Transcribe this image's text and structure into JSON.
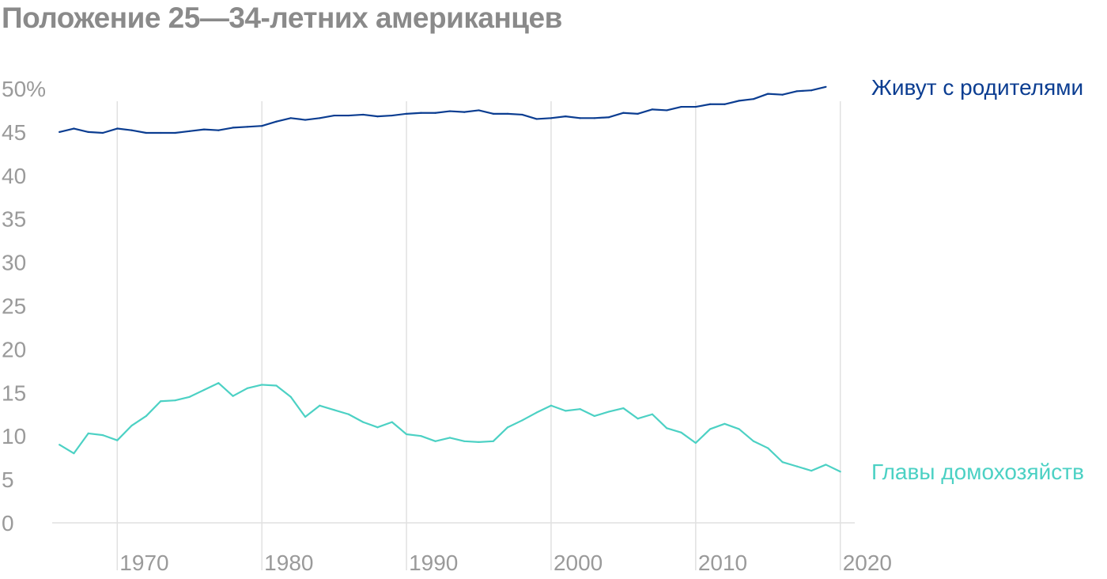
{
  "title": "Положение 25—34-летних американцев",
  "colors": {
    "living_with_parents": "#0b3d91",
    "heads_of_household": "#4cd1c4",
    "grid": "#e1e1e1",
    "axis_text": "#9a9a9a",
    "title": "#8a8a8a"
  },
  "chart_data": {
    "type": "line",
    "title": "Положение 25—34-летних американцев",
    "xlabel": "",
    "ylabel": "",
    "xlim": [
      1965.5,
      2021
    ],
    "ylim": [
      0,
      50
    ],
    "x_ticks": [
      1970,
      1980,
      1990,
      2000,
      2010,
      2020
    ],
    "y_ticks": [
      {
        "value": 0,
        "label": "0"
      },
      {
        "value": 5,
        "label": "5"
      },
      {
        "value": 10,
        "label": "10"
      },
      {
        "value": 15,
        "label": "15"
      },
      {
        "value": 20,
        "label": "20"
      },
      {
        "value": 25,
        "label": "25"
      },
      {
        "value": 30,
        "label": "30"
      },
      {
        "value": 35,
        "label": "35"
      },
      {
        "value": 40,
        "label": "40"
      },
      {
        "value": 45,
        "label": "45"
      },
      {
        "value": 50,
        "label": "50%"
      }
    ],
    "grid": "vertical",
    "series": [
      {
        "name": "Живут с родителями",
        "color": "#0b3d91",
        "points": [
          [
            1966,
            45.0
          ],
          [
            1967,
            45.4
          ],
          [
            1968,
            45.0
          ],
          [
            1969,
            44.9
          ],
          [
            1970,
            45.4
          ],
          [
            1971,
            45.2
          ],
          [
            1972,
            44.9
          ],
          [
            1973,
            44.9
          ],
          [
            1974,
            44.9
          ],
          [
            1975,
            45.1
          ],
          [
            1976,
            45.3
          ],
          [
            1977,
            45.2
          ],
          [
            1978,
            45.5
          ],
          [
            1979,
            45.6
          ],
          [
            1980,
            45.7
          ],
          [
            1981,
            46.2
          ],
          [
            1982,
            46.6
          ],
          [
            1983,
            46.4
          ],
          [
            1984,
            46.6
          ],
          [
            1985,
            46.9
          ],
          [
            1986,
            46.9
          ],
          [
            1987,
            47.0
          ],
          [
            1988,
            46.8
          ],
          [
            1989,
            46.9
          ],
          [
            1990,
            47.1
          ],
          [
            1991,
            47.2
          ],
          [
            1992,
            47.2
          ],
          [
            1993,
            47.4
          ],
          [
            1994,
            47.3
          ],
          [
            1995,
            47.5
          ],
          [
            1996,
            47.1
          ],
          [
            1997,
            47.1
          ],
          [
            1998,
            47.0
          ],
          [
            1999,
            46.5
          ],
          [
            2000,
            46.6
          ],
          [
            2001,
            46.8
          ],
          [
            2002,
            46.6
          ],
          [
            2003,
            46.6
          ],
          [
            2004,
            46.7
          ],
          [
            2005,
            47.2
          ],
          [
            2006,
            47.1
          ],
          [
            2007,
            47.6
          ],
          [
            2008,
            47.5
          ],
          [
            2009,
            47.9
          ],
          [
            2010,
            47.9
          ],
          [
            2011,
            48.2
          ],
          [
            2012,
            48.2
          ],
          [
            2013,
            48.6
          ],
          [
            2014,
            48.8
          ],
          [
            2015,
            49.4
          ],
          [
            2016,
            49.3
          ],
          [
            2017,
            49.7
          ],
          [
            2018,
            49.8
          ],
          [
            2019,
            50.2
          ]
        ]
      },
      {
        "name": "Главы домохозяйств",
        "color": "#4cd1c4",
        "points": [
          [
            1966,
            9.0
          ],
          [
            1967,
            8.0
          ],
          [
            1968,
            10.3
          ],
          [
            1969,
            10.1
          ],
          [
            1970,
            9.5
          ],
          [
            1971,
            11.2
          ],
          [
            1972,
            12.3
          ],
          [
            1973,
            14.0
          ],
          [
            1974,
            14.1
          ],
          [
            1975,
            14.5
          ],
          [
            1976,
            15.3
          ],
          [
            1977,
            16.1
          ],
          [
            1978,
            14.6
          ],
          [
            1979,
            15.5
          ],
          [
            1980,
            15.9
          ],
          [
            1981,
            15.8
          ],
          [
            1982,
            14.5
          ],
          [
            1983,
            12.2
          ],
          [
            1984,
            13.5
          ],
          [
            1985,
            13.0
          ],
          [
            1986,
            12.5
          ],
          [
            1987,
            11.6
          ],
          [
            1988,
            11.0
          ],
          [
            1989,
            11.6
          ],
          [
            1990,
            10.2
          ],
          [
            1991,
            10.0
          ],
          [
            1992,
            9.4
          ],
          [
            1993,
            9.8
          ],
          [
            1994,
            9.4
          ],
          [
            1995,
            9.3
          ],
          [
            1996,
            9.4
          ],
          [
            1997,
            11.0
          ],
          [
            1998,
            11.8
          ],
          [
            1999,
            12.7
          ],
          [
            2000,
            13.5
          ],
          [
            2001,
            12.9
          ],
          [
            2002,
            13.1
          ],
          [
            2003,
            12.3
          ],
          [
            2004,
            12.8
          ],
          [
            2005,
            13.2
          ],
          [
            2006,
            12.0
          ],
          [
            2007,
            12.5
          ],
          [
            2008,
            10.9
          ],
          [
            2009,
            10.4
          ],
          [
            2010,
            9.2
          ],
          [
            2011,
            10.8
          ],
          [
            2012,
            11.4
          ],
          [
            2013,
            10.8
          ],
          [
            2014,
            9.4
          ],
          [
            2015,
            8.6
          ],
          [
            2016,
            7.0
          ],
          [
            2017,
            6.5
          ],
          [
            2018,
            6.0
          ],
          [
            2019,
            6.7
          ],
          [
            2020,
            5.9
          ]
        ]
      }
    ]
  }
}
